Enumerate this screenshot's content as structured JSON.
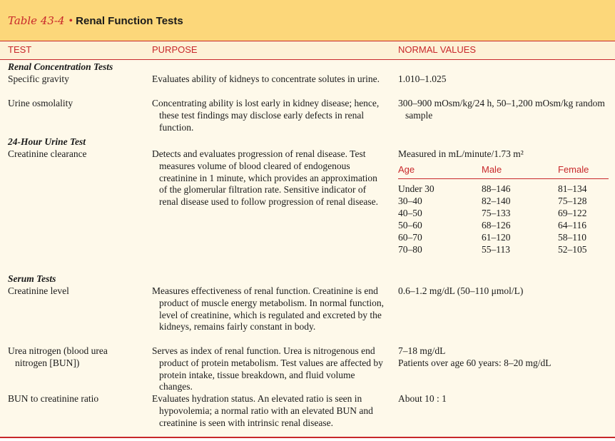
{
  "table": {
    "number": "Table 43-4",
    "bullet": "•",
    "title": "Renal Function Tests"
  },
  "columns": {
    "test": "TEST",
    "purpose": "PURPOSE",
    "normal_values": "NORMAL VALUES"
  },
  "sections": {
    "renal_concentration": "Renal Concentration Tests",
    "urine_24h": "24-Hour Urine Test",
    "serum": "Serum Tests"
  },
  "rows": {
    "specific_gravity": {
      "test": "Specific gravity",
      "purpose": "Evaluates ability of kidneys to concentrate solutes in urine.",
      "normal": "1.010–1.025"
    },
    "urine_osmolality": {
      "test": "Urine osmolality",
      "purpose": "Concentrating ability is lost early in kidney disease; hence, these test findings may disclose early defects in renal function.",
      "normal": "300–900 mOsm/kg/24 h, 50–1,200 mOsm/kg random sample"
    },
    "creatinine_clearance": {
      "test": "Creatinine clearance",
      "purpose": "Detects and evaluates progression of renal disease. Test measures volume of blood cleared of endogenous creatinine in 1 minute, which provides an approximation of the glomerular filtration rate. Sensitive indicator of renal disease used to follow progression of renal disease.",
      "normal_intro": "Measured in mL/minute/1.73 m²",
      "sub_headers": {
        "age": "Age",
        "male": "Male",
        "female": "Female"
      },
      "sub_rows": [
        {
          "age": "Under 30",
          "male": "88–146",
          "female": "81–134"
        },
        {
          "age": "30–40",
          "male": "82–140",
          "female": "75–128"
        },
        {
          "age": "40–50",
          "male": "75–133",
          "female": "69–122"
        },
        {
          "age": "50–60",
          "male": "68–126",
          "female": "64–116"
        },
        {
          "age": "60–70",
          "male": "61–120",
          "female": "58–110"
        },
        {
          "age": "70–80",
          "male": "55–113",
          "female": "52–105"
        }
      ]
    },
    "creatinine_level": {
      "test": "Creatinine level",
      "purpose": "Measures effectiveness of renal function. Creatinine is end product of muscle energy metabolism. In normal function, level of creatinine, which is regulated and excreted by the kidneys, remains fairly constant in body.",
      "normal": "0.6–1.2 mg/dL (50–110 μmol/L)"
    },
    "urea_nitrogen": {
      "test": "Urea nitrogen (blood urea nitrogen [BUN])",
      "purpose": "Serves as index of renal function. Urea is nitrogenous end product of protein metabolism. Test values are affected by protein intake, tissue breakdown, and fluid volume changes.",
      "normal_1": "7–18 mg/dL",
      "normal_2": "Patients over age 60 years: 8–20 mg/dL"
    },
    "bun_ratio": {
      "test": "BUN to creatinine ratio",
      "purpose": "Evaluates hydration status. An elevated ratio is seen in hypovolemia; a normal ratio with an elevated BUN and creatinine is seen with intrinsic renal disease.",
      "normal": "About 10 : 1"
    }
  }
}
